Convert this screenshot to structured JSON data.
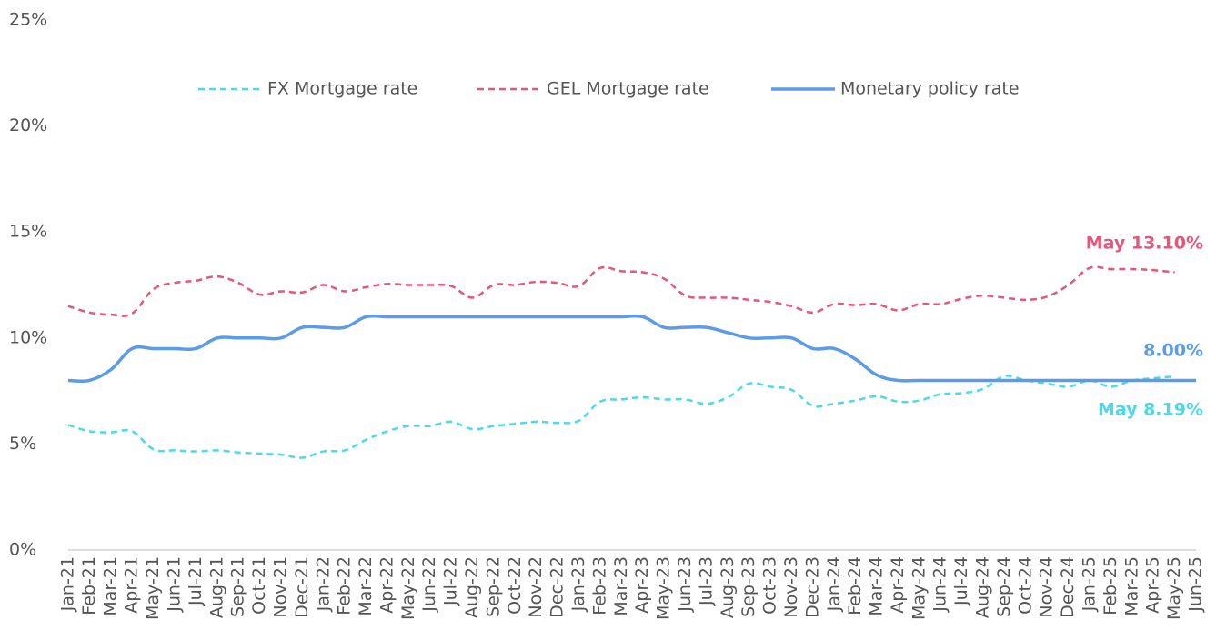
{
  "chart_data": {
    "type": "line",
    "categories": [
      "Jan-21",
      "Feb-21",
      "Mar-21",
      "Apr-21",
      "May-21",
      "Jun-21",
      "Jul-21",
      "Aug-21",
      "Sep-21",
      "Oct-21",
      "Nov-21",
      "Dec-21",
      "Jan-22",
      "Feb-22",
      "Mar-22",
      "Apr-22",
      "May-22",
      "Jun-22",
      "Jul-22",
      "Aug-22",
      "Sep-22",
      "Oct-22",
      "Nov-22",
      "Dec-22",
      "Jan-23",
      "Feb-23",
      "Mar-23",
      "Apr-23",
      "May-23",
      "Jun-23",
      "Jul-23",
      "Aug-23",
      "Sep-23",
      "Oct-23",
      "Nov-23",
      "Dec-23",
      "Jan-24",
      "Feb-24",
      "Mar-24",
      "Apr-24",
      "May-24",
      "Jun-24",
      "Jul-24",
      "Aug-24",
      "Sep-24",
      "Oct-24",
      "Nov-24",
      "Dec-24",
      "Jan-25",
      "Feb-25",
      "Mar-25",
      "Apr-25",
      "May-25",
      "Jun-25"
    ],
    "series": [
      {
        "name": "FX Mortgage rate",
        "color": "#4dd9ec",
        "dash": true,
        "values": [
          5.9,
          5.6,
          5.55,
          5.6,
          4.75,
          4.7,
          4.65,
          4.7,
          4.6,
          4.55,
          4.5,
          4.35,
          4.65,
          4.7,
          5.2,
          5.6,
          5.85,
          5.85,
          6.05,
          5.7,
          5.85,
          5.95,
          6.05,
          6.0,
          6.1,
          7.0,
          7.1,
          7.2,
          7.1,
          7.1,
          6.9,
          7.2,
          7.85,
          7.7,
          7.55,
          6.8,
          6.9,
          7.05,
          7.25,
          7.0,
          7.05,
          7.35,
          7.4,
          7.6,
          8.2,
          8.0,
          7.85,
          7.7,
          8.0,
          7.7,
          8.0,
          8.1,
          8.19,
          null
        ]
      },
      {
        "name": "GEL Mortgage rate",
        "color": "#e8557a",
        "dash": true,
        "values": [
          11.5,
          11.2,
          11.1,
          11.15,
          12.3,
          12.6,
          12.7,
          12.9,
          12.6,
          12.05,
          12.2,
          12.15,
          12.5,
          12.2,
          12.4,
          12.55,
          12.5,
          12.5,
          12.45,
          11.9,
          12.5,
          12.5,
          12.65,
          12.6,
          12.45,
          13.3,
          13.15,
          13.1,
          12.8,
          12.0,
          11.9,
          11.9,
          11.8,
          11.7,
          11.5,
          11.2,
          11.6,
          11.55,
          11.6,
          11.3,
          11.6,
          11.6,
          11.85,
          12.0,
          11.9,
          11.8,
          11.95,
          12.5,
          13.3,
          13.25,
          13.25,
          13.2,
          13.1,
          null
        ]
      },
      {
        "name": "Monetary policy rate",
        "color": "#5b9be8",
        "dash": false,
        "values": [
          8.0,
          8.0,
          8.5,
          9.5,
          9.5,
          9.5,
          9.5,
          10.0,
          10.0,
          10.0,
          10.0,
          10.5,
          10.5,
          10.5,
          11,
          11,
          11,
          11,
          11,
          11,
          11,
          11,
          11,
          11,
          11,
          11,
          11,
          11,
          10.5,
          10.5,
          10.5,
          10.25,
          10,
          10,
          10,
          9.5,
          9.5,
          9.0,
          8.25,
          8.0,
          8.0,
          8.0,
          8.0,
          8.0,
          8.0,
          8.0,
          8.0,
          8.0,
          8.0,
          8.0,
          8.0,
          8.0,
          8.0,
          8.0
        ]
      }
    ],
    "ylim": [
      0,
      25
    ],
    "yticks": [
      {
        "value": 0,
        "label": "0%"
      },
      {
        "value": 5,
        "label": "5%"
      },
      {
        "value": 10,
        "label": "10%"
      },
      {
        "value": 15,
        "label": "15%"
      },
      {
        "value": 20,
        "label": "20%"
      },
      {
        "value": 25,
        "label": "25%"
      }
    ],
    "annotations": [
      "May 13.10%",
      "8.00%",
      "May 8.19%"
    ],
    "legend": "top"
  }
}
